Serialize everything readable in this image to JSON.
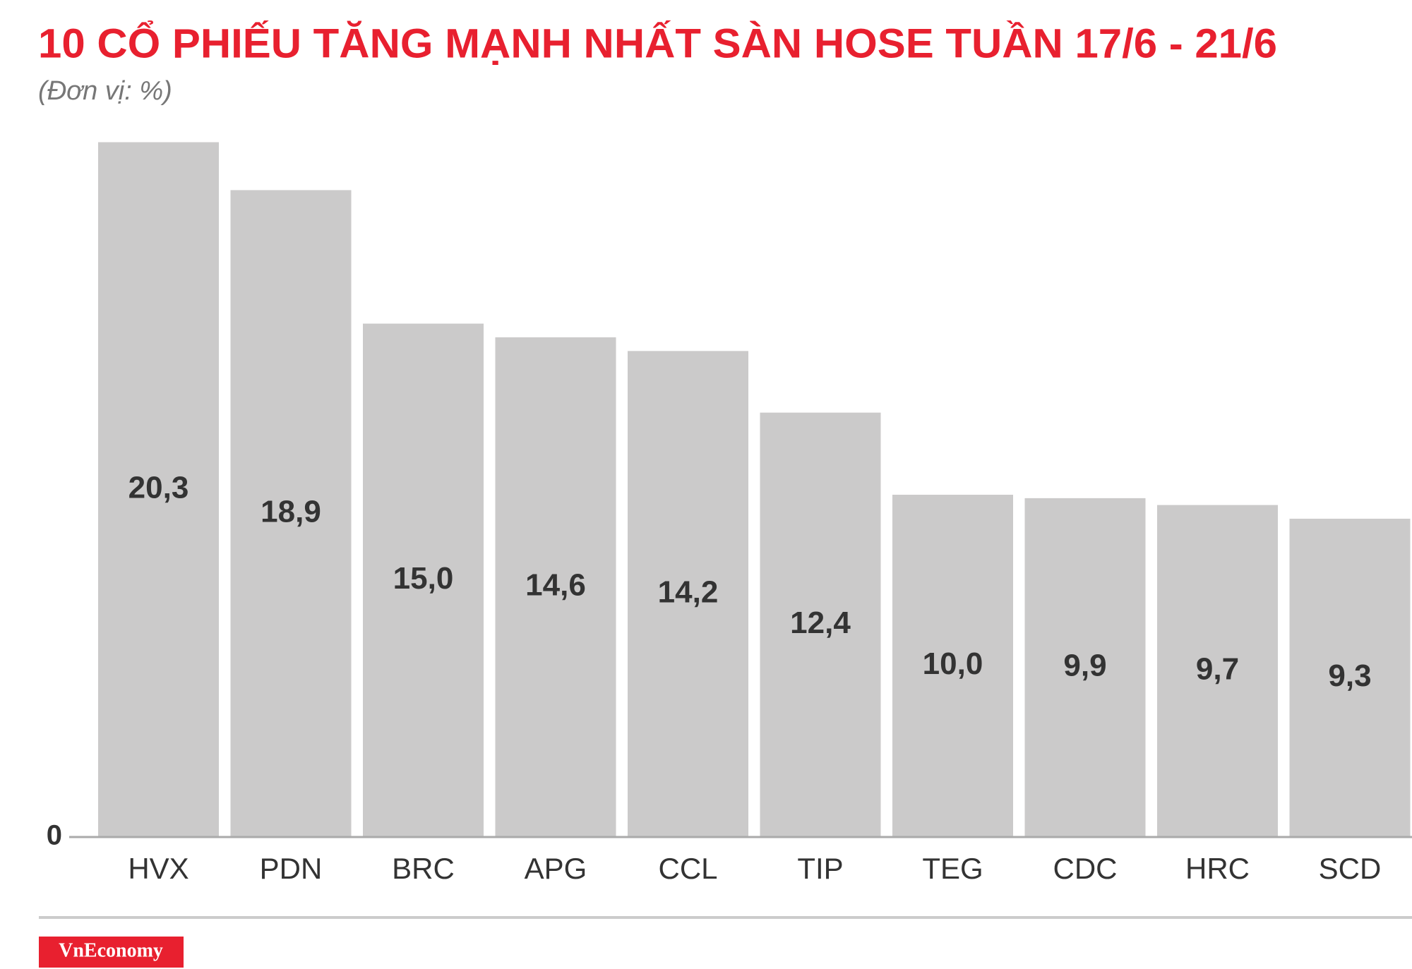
{
  "chart_data": {
    "type": "bar",
    "title": "10 CỔ PHIẾU TĂNG MẠNH NHẤT SÀN HOSE TUẦN 17/6 - 21/6",
    "subtitle": "(Đơn vị: %)",
    "categories": [
      "HVX",
      "PDN",
      "BRC",
      "APG",
      "CCL",
      "TIP",
      "TEG",
      "CDC",
      "HRC",
      "SCD"
    ],
    "values": [
      20.3,
      18.9,
      15.0,
      14.6,
      14.2,
      12.4,
      10.0,
      9.9,
      9.7,
      9.3
    ],
    "value_labels": [
      "20,3",
      "18,9",
      "15,0",
      "14,6",
      "14,2",
      "12,4",
      "10,0",
      "9,9",
      "9,7",
      "9,3"
    ],
    "color": "#cbcaca",
    "ylim": [
      0,
      20.3
    ],
    "yticks": [
      0
    ],
    "grid": false
  },
  "footer": {
    "logo": "VnEconomy"
  }
}
